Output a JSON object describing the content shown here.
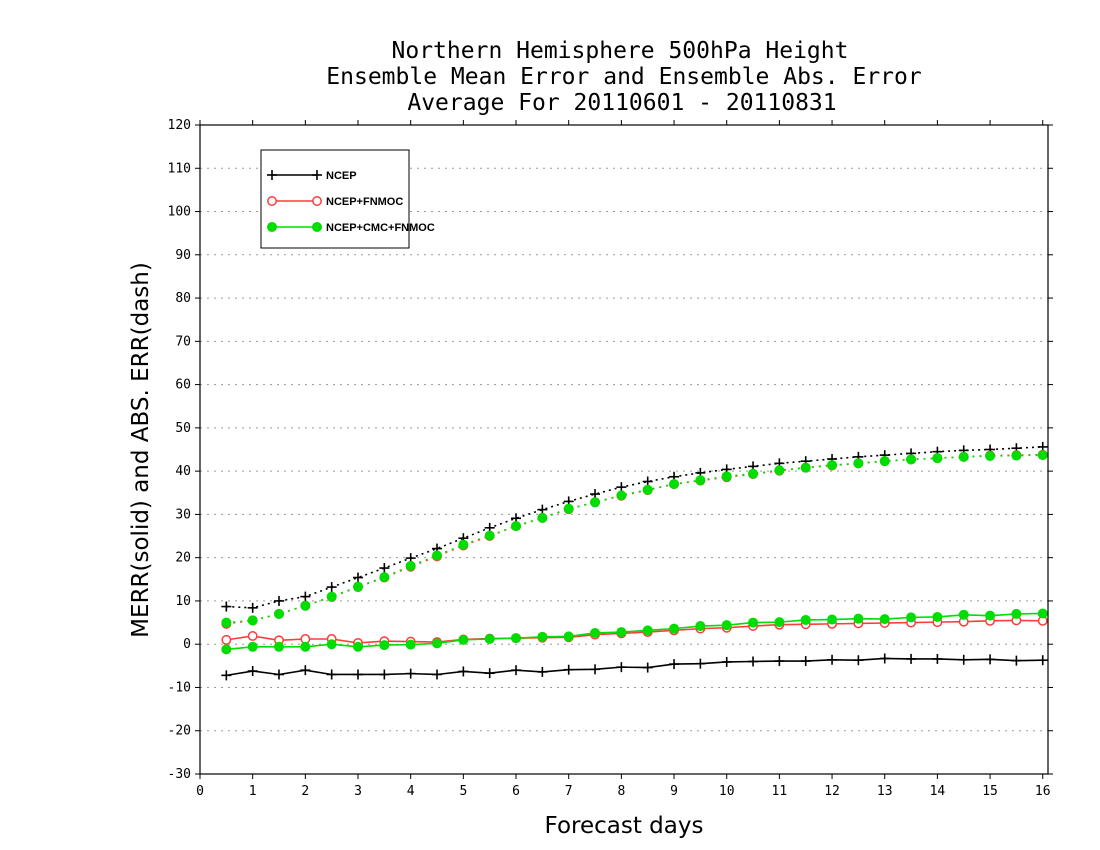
{
  "chart_data": {
    "type": "line",
    "title_lines": [
      "Northern Hemisphere 500hPa Height",
      "Ensemble Mean Error and Ensemble Abs. Error",
      "Average For 20110601 - 20110831"
    ],
    "xlabel": "Forecast days",
    "ylabel": "MERR(solid) and ABS. ERR(dash)",
    "xlim": [
      0,
      16.1
    ],
    "ylim": [
      -30,
      120
    ],
    "xticks": [
      0,
      1,
      2,
      3,
      4,
      5,
      6,
      7,
      8,
      9,
      10,
      11,
      12,
      13,
      14,
      15,
      16
    ],
    "yticks": [
      -30,
      -20,
      -10,
      0,
      10,
      20,
      30,
      40,
      50,
      60,
      70,
      80,
      90,
      100,
      110,
      120
    ],
    "grid": "horizontal dotted",
    "legend_position": "top-left",
    "x": [
      0.5,
      1,
      1.5,
      2,
      2.5,
      3,
      3.5,
      4,
      4.5,
      5,
      5.5,
      6,
      6.5,
      7,
      7.5,
      8,
      8.5,
      9,
      9.5,
      10,
      10.5,
      11,
      11.5,
      12,
      12.5,
      13,
      13.5,
      14,
      14.5,
      15,
      15.5,
      16
    ],
    "series": [
      {
        "name": "NCEP",
        "color": "#000000",
        "marker": "plus",
        "merr": [
          -7.2,
          -6.2,
          -7.0,
          -6.0,
          -7.0,
          -7.0,
          -7.0,
          -6.8,
          -7.0,
          -6.3,
          -6.7,
          -6.0,
          -6.4,
          -5.9,
          -5.8,
          -5.3,
          -5.4,
          -4.6,
          -4.5,
          -4.1,
          -4.0,
          -3.9,
          -3.9,
          -3.6,
          -3.7,
          -3.3,
          -3.4,
          -3.4,
          -3.6,
          -3.5,
          -3.8,
          -3.7
        ],
        "abs_err": [
          8.7,
          8.4,
          10.0,
          11.0,
          13.2,
          15.4,
          17.6,
          19.9,
          22.1,
          24.5,
          26.9,
          29.1,
          31.1,
          33.0,
          34.7,
          36.3,
          37.6,
          38.7,
          39.6,
          40.4,
          41.1,
          41.8,
          42.3,
          42.8,
          43.3,
          43.7,
          44.1,
          44.5,
          44.8,
          45.0,
          45.3,
          45.6
        ]
      },
      {
        "name": "NCEP+FNMOC",
        "color": "#ff3c3c",
        "marker": "open-circle",
        "merr": [
          1.0,
          1.9,
          0.9,
          1.2,
          1.2,
          0.3,
          0.7,
          0.6,
          0.5,
          1.1,
          1.3,
          1.4,
          1.5,
          1.6,
          2.2,
          2.5,
          2.8,
          3.2,
          3.6,
          3.8,
          4.2,
          4.5,
          4.6,
          4.7,
          4.8,
          4.9,
          5.0,
          5.1,
          5.2,
          5.4,
          5.5,
          5.4
        ],
        "abs_err": [
          4.7,
          5.5,
          7.0,
          8.9,
          10.9,
          13.2,
          15.4,
          17.9,
          20.3,
          22.8,
          25.0,
          27.3,
          29.2,
          31.2,
          32.8,
          34.3,
          35.6,
          37.0,
          37.8,
          38.6,
          39.3,
          40.1,
          40.8,
          41.3,
          41.8,
          42.3,
          42.7,
          43.0,
          43.3,
          43.6,
          43.7,
          43.8
        ]
      },
      {
        "name": "NCEP+CMC+FNMOC",
        "color": "#00dd00",
        "marker": "filled-circle",
        "merr": [
          -1.2,
          -0.6,
          -0.6,
          -0.6,
          0.0,
          -0.6,
          -0.2,
          -0.1,
          0.2,
          1.0,
          1.2,
          1.4,
          1.7,
          1.8,
          2.6,
          2.8,
          3.2,
          3.6,
          4.2,
          4.4,
          5.0,
          5.1,
          5.6,
          5.7,
          5.9,
          5.8,
          6.2,
          6.3,
          6.8,
          6.6,
          7.0,
          7.1
        ],
        "abs_err": [
          5.0,
          5.5,
          7.0,
          8.9,
          11.0,
          13.3,
          15.5,
          18.1,
          20.5,
          23.0,
          25.1,
          27.3,
          29.2,
          31.3,
          32.8,
          34.4,
          35.7,
          37.0,
          37.9,
          38.8,
          39.4,
          40.2,
          40.8,
          41.4,
          41.8,
          42.3,
          42.7,
          43.0,
          43.3,
          43.5,
          43.6,
          43.7
        ]
      }
    ]
  }
}
